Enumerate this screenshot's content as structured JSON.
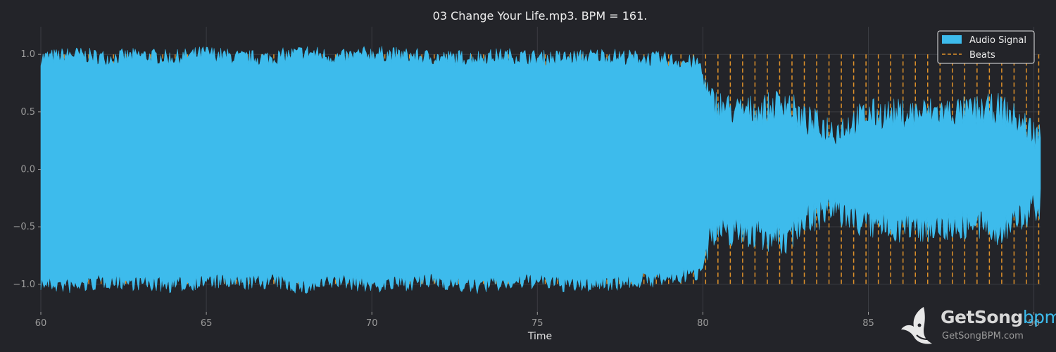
{
  "chart_data": {
    "type": "area",
    "title": "03 Change Your Life.mp3. BPM = 161.",
    "xlabel": "Time",
    "ylabel": "",
    "xlim": [
      60,
      90.2
    ],
    "ylim": [
      -1.24,
      1.24
    ],
    "xticks": [
      60,
      65,
      70,
      75,
      80,
      85,
      90
    ],
    "xtick_labels": [
      "60",
      "65",
      "70",
      "75",
      "80",
      "85",
      "90"
    ],
    "yticks": [
      1.0,
      0.5,
      0.0,
      -0.5,
      -1.0
    ],
    "ytick_labels": [
      "1.0",
      "0.5",
      "0.0",
      "−0.5",
      "−1.0"
    ],
    "grid": true,
    "legend": {
      "placement": "top-right",
      "entries": [
        "Audio Signal",
        "Beats"
      ]
    },
    "bpm": 161,
    "series": [
      {
        "name": "Audio Signal",
        "kind": "waveform-envelope",
        "color": "#3dbbec",
        "x": [
          60.0,
          61.0,
          62.0,
          63.0,
          64.0,
          65.0,
          66.0,
          67.0,
          68.0,
          69.0,
          70.0,
          71.0,
          72.0,
          73.0,
          74.0,
          75.0,
          76.0,
          77.0,
          78.0,
          79.0,
          79.9,
          80.2,
          81.0,
          82.0,
          82.5,
          83.0,
          84.0,
          85.0,
          86.0,
          87.0,
          88.0,
          89.0,
          90.2
        ],
        "upper": [
          1.0,
          1.03,
          1.0,
          1.02,
          1.0,
          1.04,
          1.0,
          1.0,
          1.05,
          1.0,
          1.04,
          1.02,
          1.0,
          1.0,
          1.02,
          1.0,
          1.0,
          1.02,
          1.0,
          0.98,
          0.95,
          0.62,
          0.52,
          0.55,
          0.62,
          0.45,
          0.36,
          0.5,
          0.5,
          0.52,
          0.52,
          0.55,
          0.3
        ],
        "lower": [
          -1.02,
          -1.05,
          -1.0,
          -1.02,
          -1.04,
          -1.0,
          -1.02,
          -1.0,
          -1.06,
          -1.0,
          -1.04,
          -1.02,
          -1.0,
          -1.05,
          -1.02,
          -1.0,
          -1.04,
          -1.02,
          -1.0,
          -0.98,
          -0.93,
          -0.6,
          -0.55,
          -0.6,
          -0.65,
          -0.45,
          -0.38,
          -0.5,
          -0.52,
          -0.52,
          -0.5,
          -0.55,
          -0.32
        ]
      },
      {
        "name": "Beats",
        "kind": "vertical-lines",
        "color": "#e0922a",
        "style": "dashed",
        "first_beat": 60.33,
        "last_beat": 90.15,
        "interval": 0.3727
      }
    ]
  },
  "watermark": {
    "brand_main": "GetSong",
    "brand_accent": "bpm",
    "url": "GetSongBPM.com",
    "brand_color": "#d8d8d8",
    "accent_color": "#3dbbec"
  }
}
